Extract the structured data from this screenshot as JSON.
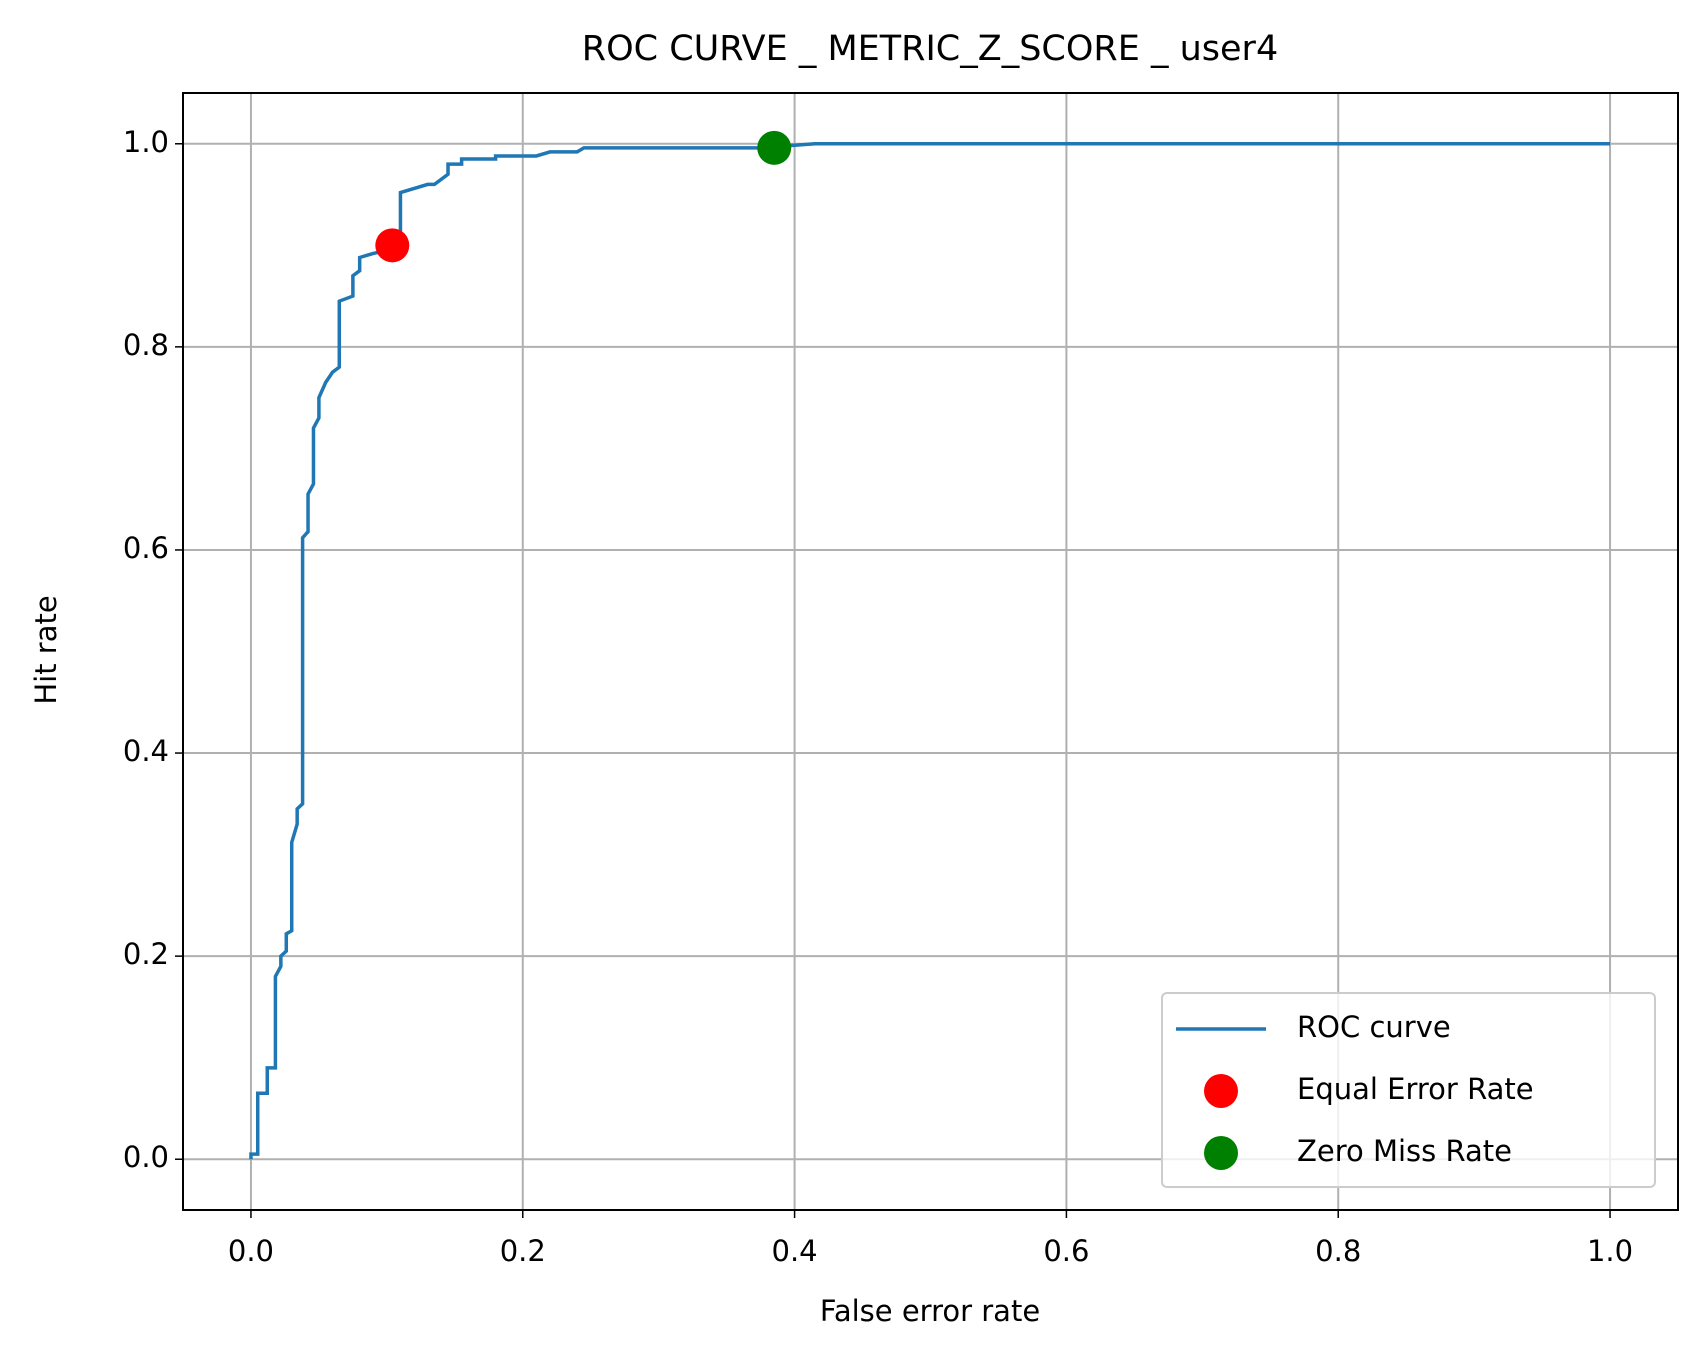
{
  "chart_data": {
    "type": "line",
    "title": "ROC CURVE _ METRIC_Z_SCORE _ user4",
    "x_label": "False error rate",
    "y_label": "Hit rate",
    "xlim": [
      -0.05,
      1.05
    ],
    "ylim": [
      -0.05,
      1.05
    ],
    "xticks": [
      {
        "value": 0,
        "label": "0.0"
      },
      0.2,
      0.4,
      0.6,
      0.8,
      {
        "value": 1,
        "label": "1.0"
      }
    ],
    "yticks": [
      {
        "value": 0,
        "label": "0.0"
      },
      0.2,
      0.4,
      0.6,
      0.8,
      {
        "value": 1,
        "label": "1.0"
      }
    ],
    "grid": true,
    "legend": "lower right",
    "series": [
      {
        "name": "ROC curve",
        "color": "#1f77b4",
        "type": "line",
        "x": [
          0,
          0,
          0.005,
          0.005,
          0.012,
          0.012,
          0.018,
          0.018,
          0.022,
          0.022,
          0.026,
          0.026,
          0.03,
          0.03,
          0.034,
          0.034,
          0.038,
          0.038,
          0.042,
          0.042,
          0.046,
          0.046,
          0.05,
          0.05,
          0.055,
          0.06,
          0.065,
          0.065,
          0.075,
          0.075,
          0.08,
          0.08,
          0.085,
          0.09,
          0.1,
          0.105,
          0.11,
          0.11,
          0.13,
          0.135,
          0.145,
          0.145,
          0.155,
          0.155,
          0.18,
          0.18,
          0.21,
          0.22,
          0.24,
          0.245,
          0.38,
          0.395,
          0.415,
          1.0
        ],
        "values": [
          0,
          0.005,
          0.005,
          0.065,
          0.065,
          0.09,
          0.09,
          0.18,
          0.19,
          0.2,
          0.205,
          0.222,
          0.225,
          0.312,
          0.33,
          0.345,
          0.35,
          0.612,
          0.618,
          0.655,
          0.665,
          0.72,
          0.73,
          0.75,
          0.765,
          0.775,
          0.78,
          0.845,
          0.85,
          0.87,
          0.875,
          0.888,
          0.89,
          0.892,
          0.895,
          0.9,
          0.91,
          0.952,
          0.96,
          0.96,
          0.97,
          0.98,
          0.98,
          0.985,
          0.985,
          0.988,
          0.988,
          0.992,
          0.992,
          0.996,
          0.996,
          0.998,
          1.0,
          1.0
        ]
      },
      {
        "name": "Equal Error Rate",
        "color": "#ff0000",
        "type": "scatter",
        "x": [
          0.104
        ],
        "values": [
          0.9
        ]
      },
      {
        "name": "Zero Miss Rate",
        "color": "#008000",
        "type": "scatter",
        "x": [
          0.385
        ],
        "values": [
          0.996
        ]
      }
    ]
  }
}
